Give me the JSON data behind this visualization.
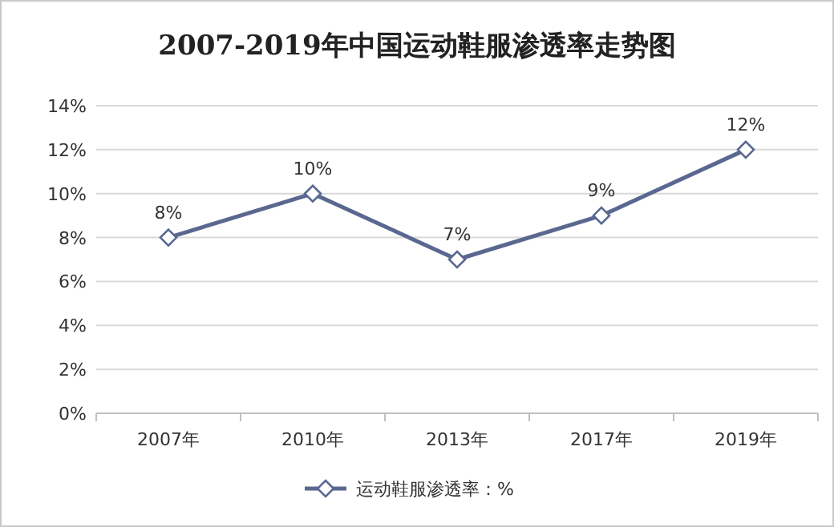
{
  "chart_data": {
    "type": "line",
    "title": "2007-2019年中国运动鞋服渗透率走势图",
    "categories": [
      "2007年",
      "2010年",
      "2013年",
      "2017年",
      "2019年"
    ],
    "series": [
      {
        "name": "运动鞋服渗透率：%",
        "color": "#5a6890",
        "values": [
          8,
          10,
          7,
          9,
          12
        ],
        "value_labels": [
          "8%",
          "10%",
          "7%",
          "9%",
          "12%"
        ]
      }
    ],
    "ylim": [
      0,
      14
    ],
    "yticks": [
      {
        "value": 0,
        "label": "0%"
      },
      {
        "value": 2,
        "label": "2%"
      },
      {
        "value": 4,
        "label": "4%"
      },
      {
        "value": 6,
        "label": "6%"
      },
      {
        "value": 8,
        "label": "8%"
      },
      {
        "value": 10,
        "label": "10%"
      },
      {
        "value": 12,
        "label": "12%"
      },
      {
        "value": 14,
        "label": "14%"
      }
    ],
    "grid": "y",
    "legend": "bottom",
    "marker": "diamond",
    "line_style": "solid"
  }
}
